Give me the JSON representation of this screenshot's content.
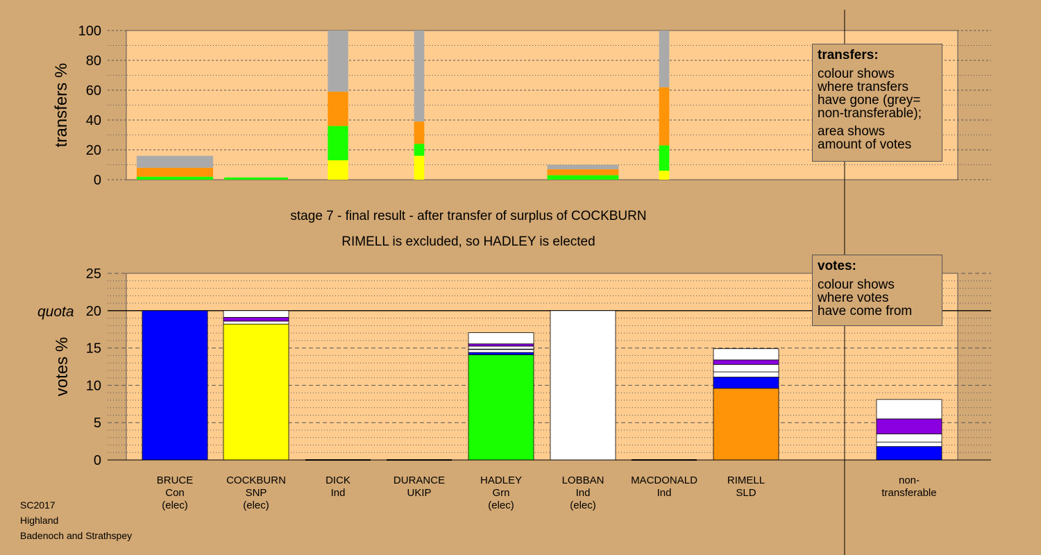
{
  "stage_title": "stage 7 - final result - after transfer of surplus of COCKBURN",
  "stage_subtitle": "RIMELL is excluded, so HADLEY is elected",
  "transfers_legend": {
    "title": "transfers:",
    "lines": [
      "colour shows",
      "where transfers",
      "have gone (grey=",
      "non-transferable);"
    ],
    "lines2": [
      "area shows",
      "amount of votes"
    ]
  },
  "votes_legend": {
    "title": "votes:",
    "lines": [
      "colour shows",
      "where votes",
      "have come from"
    ]
  },
  "footer": [
    "SC2017",
    "Highland",
    "Badenoch and Strathspey"
  ],
  "candidates": [
    {
      "name": "BRUCE",
      "party": "Con",
      "status": "(elec)"
    },
    {
      "name": "COCKBURN",
      "party": "SNP",
      "status": "(elec)"
    },
    {
      "name": "DICK",
      "party": "Ind",
      "status": ""
    },
    {
      "name": "DURANCE",
      "party": "UKIP",
      "status": ""
    },
    {
      "name": "HADLEY",
      "party": "Grn",
      "status": "(elec)"
    },
    {
      "name": "LOBBAN",
      "party": "Ind",
      "status": "(elec)"
    },
    {
      "name": "MACDONALD",
      "party": "Ind",
      "status": ""
    },
    {
      "name": "RIMELL",
      "party": "SLD",
      "status": ""
    }
  ],
  "nontransferable_label": [
    "non-",
    "transferable"
  ],
  "colors": {
    "background": "#d2a874",
    "plot": "#ffcc8f",
    "Con": "#0000ff",
    "SNP": "#ffff00",
    "Grn": "#1aff00",
    "SLD": "#ff9408",
    "Ind": "#ffffff",
    "purple": "#8b00e0",
    "grey": "#aaaaaa"
  },
  "chart_data": [
    {
      "type": "bar",
      "stacked": true,
      "ylabel": "transfers %",
      "ylim": [
        0,
        100
      ],
      "yticks": [
        0,
        20,
        40,
        60,
        80,
        100
      ],
      "grid": true,
      "note": "bar width proportional to amount of votes transferred",
      "bars": [
        {
          "from": "BRUCE",
          "width_votes_pct": 3.0,
          "segments": [
            {
              "to": "HADLEY",
              "color": "#1aff00",
              "from_pct": 0,
              "to_pct": 2
            },
            {
              "to": "RIMELL",
              "color": "#ff9408",
              "from_pct": 2,
              "to_pct": 8
            },
            {
              "to": "non-transferable",
              "color": "#aaaaaa",
              "from_pct": 8,
              "to_pct": 16
            }
          ]
        },
        {
          "from": "COCKBURN",
          "width_votes_pct": 2.5,
          "segments": [
            {
              "to": "HADLEY",
              "color": "#1aff00",
              "from_pct": 0,
              "to_pct": 1.5
            }
          ]
        },
        {
          "from": "DICK",
          "width_votes_pct": 0.8,
          "segments": [
            {
              "to": "COCKBURN",
              "color": "#ffff00",
              "from_pct": 0,
              "to_pct": 13
            },
            {
              "to": "HADLEY",
              "color": "#1aff00",
              "from_pct": 13,
              "to_pct": 36
            },
            {
              "to": "RIMELL",
              "color": "#ff9408",
              "from_pct": 36,
              "to_pct": 59
            },
            {
              "to": "non-transferable",
              "color": "#aaaaaa",
              "from_pct": 59,
              "to_pct": 100
            }
          ]
        },
        {
          "from": "DURANCE",
          "width_votes_pct": 0.4,
          "segments": [
            {
              "to": "COCKBURN",
              "color": "#ffff00",
              "from_pct": 0,
              "to_pct": 16
            },
            {
              "to": "HADLEY",
              "color": "#1aff00",
              "from_pct": 16,
              "to_pct": 24
            },
            {
              "to": "RIMELL",
              "color": "#ff9408",
              "from_pct": 24,
              "to_pct": 39
            },
            {
              "to": "non-transferable",
              "color": "#aaaaaa",
              "from_pct": 39,
              "to_pct": 100
            }
          ]
        },
        {
          "from": "LOBBAN",
          "width_votes_pct": 2.8,
          "segments": [
            {
              "to": "HADLEY",
              "color": "#1aff00",
              "from_pct": 0,
              "to_pct": 3
            },
            {
              "to": "RIMELL",
              "color": "#ff9408",
              "from_pct": 3,
              "to_pct": 7
            },
            {
              "to": "non-transferable",
              "color": "#aaaaaa",
              "from_pct": 7,
              "to_pct": 10
            }
          ]
        },
        {
          "from": "MACDONALD",
          "width_votes_pct": 0.4,
          "segments": [
            {
              "to": "COCKBURN",
              "color": "#ffff00",
              "from_pct": 0,
              "to_pct": 6
            },
            {
              "to": "HADLEY",
              "color": "#1aff00",
              "from_pct": 6,
              "to_pct": 23
            },
            {
              "to": "RIMELL",
              "color": "#ff9408",
              "from_pct": 23,
              "to_pct": 62
            },
            {
              "to": "non-transferable",
              "color": "#aaaaaa",
              "from_pct": 62,
              "to_pct": 100
            }
          ]
        }
      ]
    },
    {
      "type": "bar",
      "stacked": true,
      "ylabel": "votes %",
      "ylim": [
        0,
        25
      ],
      "yticks": [
        0,
        5,
        10,
        15,
        20,
        25
      ],
      "quota": 20,
      "quota_label": "quota",
      "grid": true,
      "categories": [
        "BRUCE",
        "COCKBURN",
        "DICK",
        "DURANCE",
        "HADLEY",
        "LOBBAN",
        "MACDONALD",
        "RIMELL",
        "non-transferable"
      ],
      "stacks": [
        [
          {
            "source": "Con",
            "color": "#0000ff",
            "value": 20
          }
        ],
        [
          {
            "source": "SNP",
            "color": "#ffff00",
            "value": 18.2
          },
          {
            "source": "Ind",
            "color": "#ffffff",
            "value": 0.4
          },
          {
            "source": "Ind",
            "color": "#8b00e0",
            "value": 0.5
          },
          {
            "source": "Ind",
            "color": "#ffffff",
            "value": 0.9
          }
        ],
        [],
        [],
        [
          {
            "source": "Grn",
            "color": "#1aff00",
            "value": 14.1
          },
          {
            "source": "Con",
            "color": "#0000ff",
            "value": 0.3
          },
          {
            "source": "Ind",
            "color": "#ffffff",
            "value": 0.4
          },
          {
            "source": "SNP",
            "color": "#ffff00",
            "value": 0.05
          },
          {
            "source": "Ind",
            "color": "#ffffff",
            "value": 0.4
          },
          {
            "source": "Ind",
            "color": "#8b00e0",
            "value": 0.3
          },
          {
            "source": "Ind",
            "color": "#ffffff",
            "value": 1.5
          }
        ],
        [
          {
            "source": "Ind",
            "color": "#ffffff",
            "value": 20
          }
        ],
        [],
        [
          {
            "source": "SLD",
            "color": "#ff9408",
            "value": 9.6
          },
          {
            "source": "Con",
            "color": "#0000ff",
            "value": 1.5
          },
          {
            "source": "Ind",
            "color": "#ffffff",
            "value": 0.7
          },
          {
            "source": "Ind",
            "color": "#ffffff",
            "value": 1.0
          },
          {
            "source": "Ind",
            "color": "#8b00e0",
            "value": 0.6
          },
          {
            "source": "Ind",
            "color": "#ffffff",
            "value": 1.5
          }
        ],
        [
          {
            "source": "Con",
            "color": "#0000ff",
            "value": 1.8
          },
          {
            "source": "Ind",
            "color": "#ffffff",
            "value": 0.6
          },
          {
            "source": "Ind",
            "color": "#ffffff",
            "value": 1.1
          },
          {
            "source": "Ind",
            "color": "#8b00e0",
            "value": 2.0
          },
          {
            "source": "Ind",
            "color": "#ffffff",
            "value": 2.6
          }
        ]
      ]
    }
  ]
}
